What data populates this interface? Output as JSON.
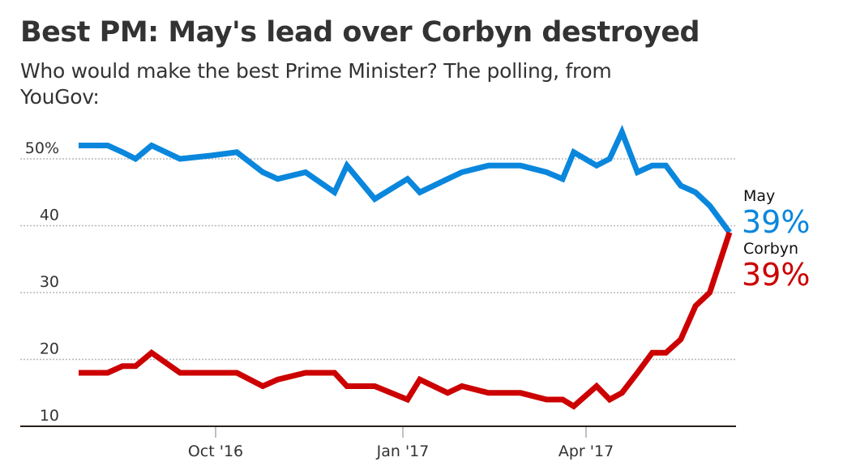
{
  "title": "Best PM: May's lead over Corbyn destroyed",
  "subtitle": "Who would make the best Prime Minister? The polling, from YouGov:",
  "chart_data": {
    "type": "line",
    "title": "Best PM: May's lead over Corbyn destroyed",
    "subtitle": "Who would make the best Prime Minister? The polling, from YouGov:",
    "xlabel": "",
    "ylabel": "",
    "ylim": [
      10,
      54
    ],
    "grid": true,
    "y_ticks": [
      {
        "value": 50,
        "label": "50%"
      },
      {
        "value": 40,
        "label": "40"
      },
      {
        "value": 30,
        "label": "30"
      },
      {
        "value": 20,
        "label": "20"
      },
      {
        "value": 10,
        "label": "10"
      }
    ],
    "x_ticks": [
      {
        "value": 0,
        "label": "Oct '16"
      },
      {
        "value": 3,
        "label": "Jan '17"
      },
      {
        "value": 6,
        "label": "Apr '17"
      }
    ],
    "x_unit": "months since Oct 2016",
    "xlim": [
      -2.2,
      8.3
    ],
    "x": [
      -2.2,
      -1.73,
      -1.49,
      -1.28,
      -1.02,
      -0.56,
      -0.05,
      0.36,
      0.78,
      1.02,
      1.47,
      1.94,
      2.14,
      2.59,
      3.12,
      3.32,
      3.77,
      4.0,
      4.43,
      4.95,
      5.37,
      5.63,
      5.81,
      6.18,
      6.39,
      6.59,
      6.84,
      7.08,
      7.3,
      7.54,
      7.78,
      8.01,
      8.33
    ],
    "series": [
      {
        "name": "May",
        "color": "#0a87dd",
        "final_label": "39%",
        "values": [
          52,
          52,
          51,
          50,
          52,
          50,
          50.5,
          51,
          48,
          47,
          48,
          45,
          49,
          44,
          47,
          45,
          47,
          48,
          49,
          49,
          48,
          47,
          51,
          49,
          50,
          54,
          48,
          49,
          49,
          46,
          45,
          43,
          39
        ]
      },
      {
        "name": "Corbyn",
        "color": "#cc0000",
        "final_label": "39%",
        "values": [
          18,
          18,
          19,
          19,
          21,
          18,
          18,
          18,
          16,
          17,
          18,
          18,
          16,
          16,
          14,
          17,
          15,
          16,
          15,
          15,
          14,
          14,
          13,
          16,
          14,
          15,
          18,
          21,
          21,
          23,
          28,
          30,
          39
        ]
      }
    ],
    "legend": "right (end-of-line labels)"
  }
}
